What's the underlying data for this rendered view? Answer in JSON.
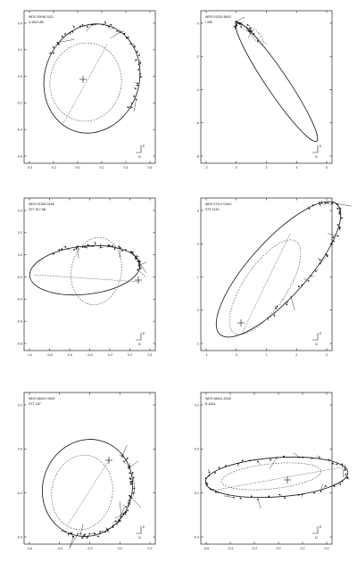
{
  "figure": {
    "panels": [
      {
        "id": "wds-00046-5111",
        "designation": "WDS 00046-5111",
        "system": "A 1823 AB",
        "compass": {
          "east": "E",
          "north": "N"
        },
        "x_ticks": [
          "-0.4",
          "-0.2",
          "0.0",
          "0.2",
          "0.4",
          "0.6"
        ],
        "y_ticks": [
          "0.4",
          "0.2",
          "0.0",
          "-0.2",
          "-0.4",
          "-0.6"
        ]
      },
      {
        "id": "wds-01320-6643",
        "designation": "WDS 01320-6643",
        "system": "I 260",
        "compass": {
          "east": "E",
          "north": "N"
        },
        "x_ticks": [
          "-2",
          "0",
          "2",
          "4",
          "6"
        ],
        "y_ticks": [
          "0",
          "-2",
          "-4",
          "-6",
          "-8"
        ]
      },
      {
        "id": "wds-03155-0158",
        "designation": "WDS 03155-0158",
        "system": "STT 517 AB",
        "compass": {
          "east": "E",
          "north": "N"
        },
        "x_ticks": [
          "-1.0",
          "-0.8",
          "-0.6",
          "-0.4",
          "-0.2",
          "0.0",
          "0.2"
        ],
        "y_ticks": [
          "0.4",
          "0.2",
          "0.0",
          "-0.2",
          "-0.4",
          "-0.6",
          "-0.8"
        ]
      },
      {
        "id": "wds-07417-0942",
        "designation": "WDS 07417+0942",
        "system": "STF 1130",
        "compass": {
          "east": "E",
          "north": "N"
        },
        "x_ticks": [
          "-1",
          "0",
          "1",
          "2",
          "3"
        ],
        "y_ticks": [
          "3",
          "2",
          "1",
          "0",
          "-1"
        ]
      },
      {
        "id": "wds-08041-2002",
        "designation": "WDS 08041+2002",
        "system": "STT 187",
        "compass": {
          "east": "E",
          "north": "N"
        },
        "x_ticks": [
          "-0.6",
          "-0.4",
          "-0.2",
          "0.0",
          "0.2"
        ],
        "y_ticks": [
          "0.2",
          "0.0",
          "-0.2",
          "-0.4"
        ]
      },
      {
        "id": "wds-08421-5245",
        "designation": "WDS 08421-5245",
        "system": "B 1624",
        "compass": {
          "east": "E",
          "north": "N"
        },
        "x_ticks": [
          "-0.6",
          "-0.4",
          "-0.2",
          "0.0",
          "0.2",
          "0.4"
        ],
        "y_ticks": [
          "0.2",
          "0.0",
          "-0.2",
          "-0.4"
        ]
      }
    ]
  }
}
